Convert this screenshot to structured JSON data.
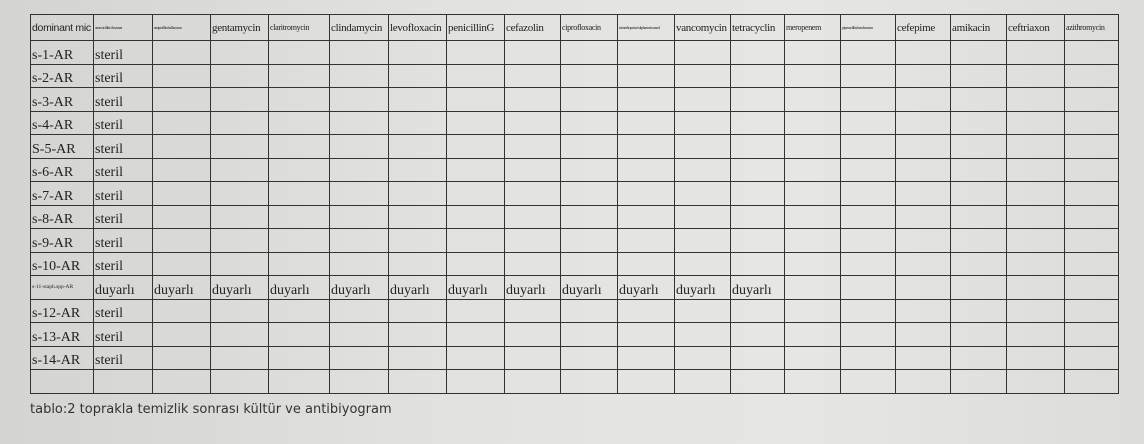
{
  "table": {
    "headers": [
      "dominant mic",
      "amoxicillin/clavunat",
      "ampicillin/sulbactam",
      "gentamycin",
      "claritromycin",
      "clindamycin",
      "levofloxacin",
      "penicillinG",
      "cefazolin",
      "ciprofloxacin",
      "trimethoprim/sulphametoxazol",
      "vancomycin",
      "tetracyclin",
      "meropenem",
      "piperacillin/tazobactam",
      "cefepime",
      "amikacin",
      "ceftriaxon",
      "azithromycin"
    ],
    "rows": [
      [
        "s-1-AR",
        "steril"
      ],
      [
        "s-2-AR",
        "steril"
      ],
      [
        "s-3-AR",
        "steril"
      ],
      [
        "s-4-AR",
        "steril"
      ],
      [
        "S-5-AR",
        "steril"
      ],
      [
        "s-6-AR",
        "steril"
      ],
      [
        "s-7-AR",
        "steril"
      ],
      [
        "s-8-AR",
        "steril"
      ],
      [
        "s-9-AR",
        "steril"
      ],
      [
        "s-10-AR",
        "steril"
      ],
      [
        "s-11-staph.spp-AR",
        "duyarlı",
        "duyarlı",
        "duyarlı",
        "duyarlı",
        "duyarlı",
        "duyarlı",
        "duyarlı",
        "duyarlı",
        "duyarlı",
        "duyarlı",
        "duyarlı",
        "duyarlı"
      ],
      [
        "s-12-AR",
        "steril"
      ],
      [
        "s-13-AR",
        "steril"
      ],
      [
        "s-14-AR",
        "steril"
      ],
      []
    ]
  },
  "caption": "tablo:2 toprakla temizlik sonrası kültür ve antibiyogram"
}
